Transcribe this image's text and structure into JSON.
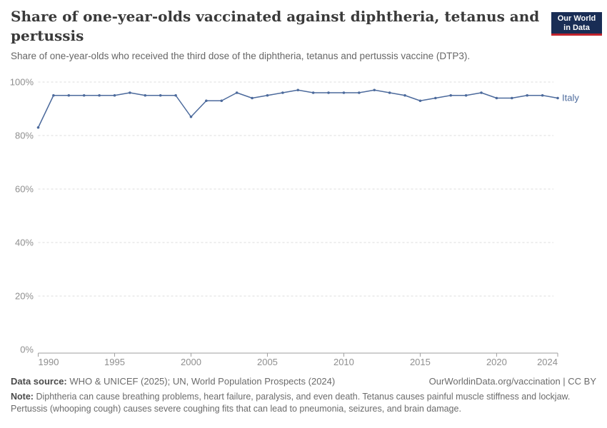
{
  "header": {
    "title": "Share of one-year-olds vaccinated against diphtheria, tetanus and pertussis",
    "subtitle": "Share of one-year-olds who received the third dose of the diphtheria, tetanus and pertussis vaccine (DTP3)."
  },
  "logo": {
    "line1": "Our World",
    "line2": "in Data",
    "bg_color": "#192d55",
    "accent_color": "#c0232c"
  },
  "chart_data": {
    "type": "line",
    "title": "Share of one-year-olds vaccinated against diphtheria, tetanus and pertussis",
    "xlabel": "",
    "ylabel": "",
    "ylim": [
      0,
      100
    ],
    "grid": true,
    "legend_position": "end-of-line",
    "x": [
      1990,
      1991,
      1992,
      1993,
      1994,
      1995,
      1996,
      1997,
      1998,
      1999,
      2000,
      2001,
      2002,
      2003,
      2004,
      2005,
      2006,
      2007,
      2008,
      2009,
      2010,
      2011,
      2012,
      2013,
      2014,
      2015,
      2016,
      2017,
      2018,
      2019,
      2020,
      2021,
      2022,
      2023,
      2024
    ],
    "series": [
      {
        "name": "Italy",
        "color": "#4c6a9c",
        "values": [
          83,
          95,
          95,
          95,
          95,
          95,
          96,
          95,
          95,
          95,
          87,
          93,
          93,
          96,
          94,
          95,
          96,
          97,
          96,
          96,
          96,
          96,
          97,
          96,
          95,
          93,
          94,
          95,
          95,
          96,
          94,
          94,
          95,
          95,
          94
        ]
      }
    ],
    "yticks": [
      {
        "value": 0,
        "label": "0%"
      },
      {
        "value": 20,
        "label": "20%"
      },
      {
        "value": 40,
        "label": "40%"
      },
      {
        "value": 60,
        "label": "60%"
      },
      {
        "value": 80,
        "label": "80%"
      },
      {
        "value": 100,
        "label": "100%"
      }
    ],
    "xticks": [
      {
        "value": 1990,
        "label": "1990"
      },
      {
        "value": 1995,
        "label": "1995"
      },
      {
        "value": 2000,
        "label": "2000"
      },
      {
        "value": 2005,
        "label": "2005"
      },
      {
        "value": 2010,
        "label": "2010"
      },
      {
        "value": 2015,
        "label": "2015"
      },
      {
        "value": 2020,
        "label": "2020"
      },
      {
        "value": 2024,
        "label": "2024"
      }
    ],
    "colors": {
      "gridline": "#dcdcdc",
      "axis": "#9f9f9f",
      "tick_text": "#8f8f8f"
    }
  },
  "footer": {
    "source_label": "Data source:",
    "source_text": "WHO & UNICEF (2025); UN, World Population Prospects (2024)",
    "link_text": "OurWorldinData.org/vaccination | CC BY",
    "note_label": "Note:",
    "note_text": "Diphtheria can cause breathing problems, heart failure, paralysis, and even death. Tetanus causes painful muscle stiffness and lockjaw. Pertussis (whooping cough) causes severe coughing fits that can lead to pneumonia, seizures, and brain damage."
  }
}
